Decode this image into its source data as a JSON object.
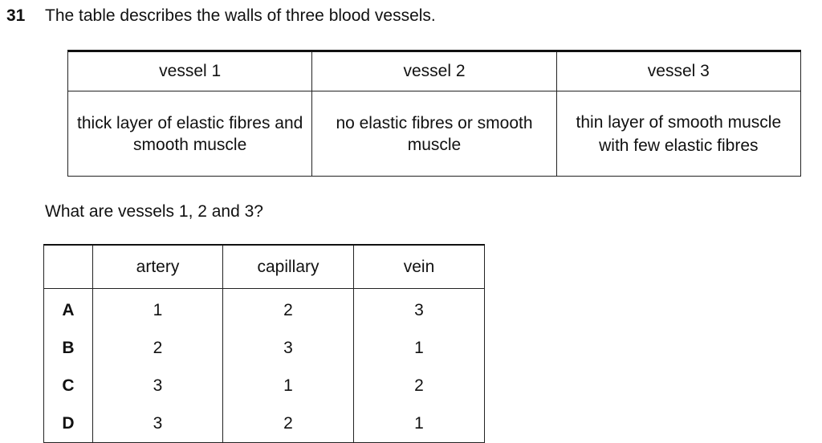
{
  "question": {
    "number": "31",
    "text": "The table describes the walls of three blood vessels."
  },
  "vessel_table": {
    "headers": [
      "vessel 1",
      "vessel 2",
      "vessel 3"
    ],
    "descriptions": [
      "thick layer of elastic fibres and smooth muscle",
      "no elastic fibres or smooth muscle",
      "thin layer of smooth muscle with few elastic fibres"
    ]
  },
  "prompt": "What are vessels 1, 2 and 3?",
  "options_table": {
    "headers": [
      "",
      "artery",
      "capillary",
      "vein"
    ],
    "rows": [
      {
        "letter": "A",
        "artery": "1",
        "capillary": "2",
        "vein": "3"
      },
      {
        "letter": "B",
        "artery": "2",
        "capillary": "3",
        "vein": "1"
      },
      {
        "letter": "C",
        "artery": "3",
        "capillary": "1",
        "vein": "2"
      },
      {
        "letter": "D",
        "artery": "3",
        "capillary": "2",
        "vein": "1"
      }
    ]
  }
}
